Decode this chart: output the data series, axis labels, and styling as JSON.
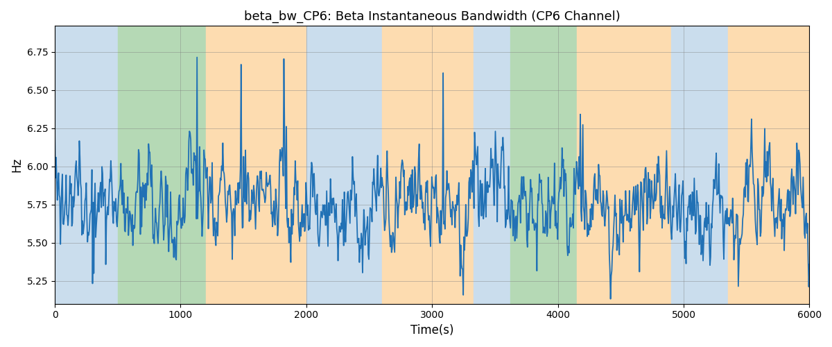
{
  "title": "beta_bw_CP6: Beta Instantaneous Bandwidth (CP6 Channel)",
  "xlabel": "Time(s)",
  "ylabel": "Hz",
  "xlim": [
    0,
    6000
  ],
  "ylim": [
    5.1,
    6.92
  ],
  "yticks": [
    5.25,
    5.5,
    5.75,
    6.0,
    6.25,
    6.5,
    6.75
  ],
  "xticks": [
    0,
    1000,
    2000,
    3000,
    4000,
    5000,
    6000
  ],
  "bg_bands": [
    {
      "xstart": 0,
      "xend": 185,
      "color": "#CADDED"
    },
    {
      "xstart": 185,
      "xend": 500,
      "color": "#CADDED"
    },
    {
      "xstart": 500,
      "xend": 1200,
      "color": "#B5D9B5"
    },
    {
      "xstart": 1200,
      "xend": 2000,
      "color": "#FDDCB0"
    },
    {
      "xstart": 2000,
      "xend": 2600,
      "color": "#CADDED"
    },
    {
      "xstart": 2600,
      "xend": 3330,
      "color": "#FDDCB0"
    },
    {
      "xstart": 3330,
      "xend": 3620,
      "color": "#CADDED"
    },
    {
      "xstart": 3620,
      "xend": 4150,
      "color": "#B5D9B5"
    },
    {
      "xstart": 4150,
      "xend": 4900,
      "color": "#FDDCB0"
    },
    {
      "xstart": 4900,
      "xend": 5350,
      "color": "#CADDED"
    },
    {
      "xstart": 5350,
      "xend": 6000,
      "color": "#FDDCB0"
    }
  ],
  "line_color": "#2171B5",
  "line_width": 1.3,
  "grid": true,
  "figsize": [
    12,
    5
  ],
  "dpi": 100,
  "title_fontsize": 13,
  "signal_seed": 1234,
  "n_points": 1200,
  "base_hz": 5.75,
  "noise_std": 0.13
}
